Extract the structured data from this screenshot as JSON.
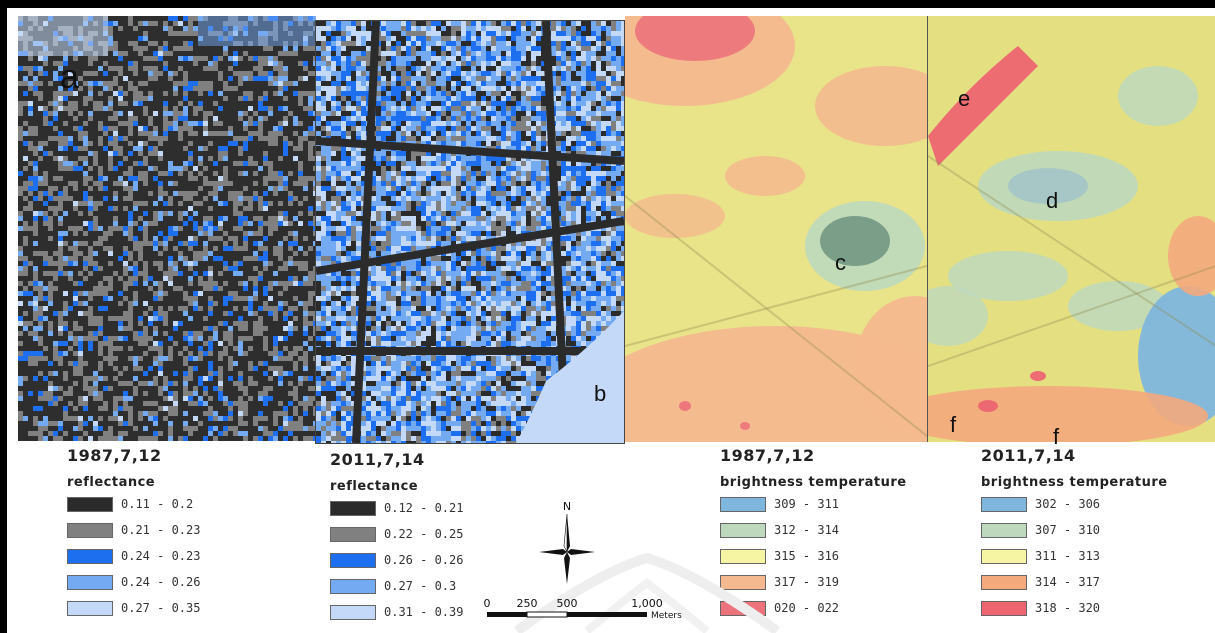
{
  "panels": [
    {
      "label": "a",
      "kind": "reflectance",
      "year": "1987"
    },
    {
      "label": "b",
      "kind": "reflectance",
      "year": "2011"
    },
    {
      "label": "c",
      "kind": "brightness",
      "year": "1987"
    },
    {
      "label": "d",
      "kind": "brightness",
      "year": "2011"
    }
  ],
  "map_labels": {
    "e": "e",
    "f1": "f",
    "f2": "f"
  },
  "legends": [
    {
      "date": "1987,7,12",
      "variable": "reflectance",
      "classes": [
        {
          "label": "0.11 - 0.2",
          "color": "#2b2b2b"
        },
        {
          "label": "0.21 - 0.23",
          "color": "#808080"
        },
        {
          "label": "0.24 - 0.23",
          "color": "#1e6ff0"
        },
        {
          "label": "0.24 - 0.26",
          "color": "#74aaf1"
        },
        {
          "label": "0.27 - 0.35",
          "color": "#c4d8f8"
        }
      ]
    },
    {
      "date": "2011,7,14",
      "variable": "reflectance",
      "classes": [
        {
          "label": "0.12 - 0.21",
          "color": "#2b2b2b"
        },
        {
          "label": "0.22 - 0.25",
          "color": "#808080"
        },
        {
          "label": "0.26 - 0.26",
          "color": "#1e6ff0"
        },
        {
          "label": "0.27 - 0.3",
          "color": "#74aaf1"
        },
        {
          "label": "0.31 - 0.39",
          "color": "#c4d8f8"
        }
      ]
    },
    {
      "date": "1987,7,12",
      "variable": "brightness temperature",
      "classes": [
        {
          "label": "309 - 311",
          "color": "#7fb6dd"
        },
        {
          "label": "312 - 314",
          "color": "#bdd8bd"
        },
        {
          "label": "315 - 316",
          "color": "#f6f5a4"
        },
        {
          "label": "317 - 319",
          "color": "#f4b98e"
        },
        {
          "label": "020 - 022",
          "color": "#ec737c"
        }
      ]
    },
    {
      "date": "2011,7,14",
      "variable": "brightness temperature",
      "classes": [
        {
          "label": "302 - 306",
          "color": "#7fb6dd"
        },
        {
          "label": "307 - 310",
          "color": "#bdd8bd"
        },
        {
          "label": "311 - 313",
          "color": "#f6f5a4"
        },
        {
          "label": "314 - 317",
          "color": "#f4a97c"
        },
        {
          "label": "318 - 320",
          "color": "#ec6571"
        }
      ]
    }
  ],
  "north_arrow": {
    "label": "N"
  },
  "scale_bar": {
    "ticks": [
      "0",
      "250",
      "500",
      "1,000"
    ],
    "unit": "Meters"
  }
}
